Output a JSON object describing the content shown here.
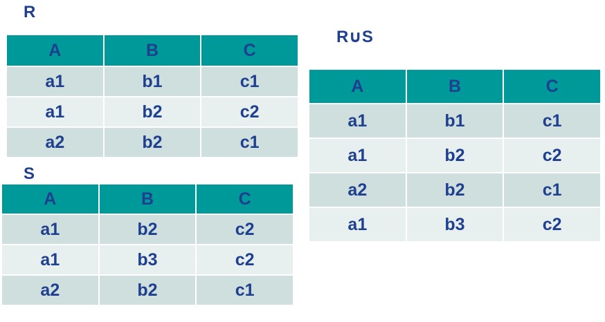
{
  "relations": [
    {
      "id": "r",
      "title": "R",
      "columns": [
        "A",
        "B",
        "C"
      ],
      "rows": [
        [
          "a1",
          "b1",
          "c1"
        ],
        [
          "a1",
          "b2",
          "c2"
        ],
        [
          "a2",
          "b2",
          "c1"
        ]
      ]
    },
    {
      "id": "s",
      "title": "S",
      "columns": [
        "A",
        "B",
        "C"
      ],
      "rows": [
        [
          "a1",
          "b2",
          "c2"
        ],
        [
          "a1",
          "b3",
          "c2"
        ],
        [
          "a2",
          "b2",
          "c1"
        ]
      ]
    },
    {
      "id": "u",
      "title": "R∪S",
      "columns": [
        "A",
        "B",
        "C"
      ],
      "rows": [
        [
          "a1",
          "b1",
          "c1"
        ],
        [
          "a1",
          "b2",
          "c2"
        ],
        [
          "a2",
          "b2",
          "c1"
        ],
        [
          "a1",
          "b3",
          "c2"
        ]
      ]
    }
  ],
  "colors": {
    "header": "#009999",
    "row_odd": "#cfdfdd",
    "row_even": "#e8f0ef",
    "text": "#1f3f8f"
  }
}
